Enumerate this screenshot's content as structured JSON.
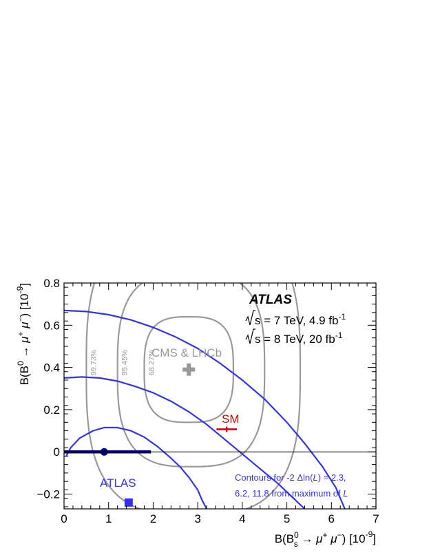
{
  "chart_data": {
    "type": "contour",
    "xlabel_prefix": "B(B",
    "xlabel_sub": "s",
    "xlabel_sup": "0",
    "xlabel_mid": " → μ",
    "xlabel_tail": " μ",
    "xlabel_unit": ") [10",
    "xlabel_exp": "-9",
    "xlabel_close": "]",
    "ylabel_prefix": "B(B",
    "ylabel_sup": "0",
    "ylabel_mid": " → μ",
    "ylabel_tail": " μ",
    "ylabel_unit": ") [10",
    "ylabel_exp": "-9",
    "ylabel_close": "]",
    "xlim": [
      0,
      7
    ],
    "ylim": [
      -0.27,
      0.8
    ],
    "xticks": [
      "0",
      "1",
      "2",
      "3",
      "4",
      "5",
      "6",
      "7"
    ],
    "yticks": [
      "−0.2",
      "0",
      "0.2",
      "0.4",
      "0.6",
      "0.8"
    ],
    "experiment": "ATLAS",
    "energy_lines": [
      {
        "text": "s = 7 TeV, 4.9 fb",
        "exp": "-1"
      },
      {
        "text": "s = 8 TeV, 20 fb",
        "exp": "-1"
      }
    ],
    "cms_lhcb": {
      "label": "CMS & LHCb",
      "center": {
        "x": 2.8,
        "y": 0.39
      },
      "contours": [
        {
          "label": "68.27%",
          "rx": 1.0,
          "ry": 0.25
        },
        {
          "label": "95.45%",
          "rx": 1.65,
          "ry": 0.46
        },
        {
          "label": "99.73%",
          "rx": 2.4,
          "ry": 0.69
        }
      ],
      "color": "#999999"
    },
    "sm": {
      "label": "SM",
      "x": 3.65,
      "y": 0.107,
      "xerr": 0.23,
      "color": "#cc0000"
    },
    "atlas": {
      "label": "ATLAS",
      "best_fit": {
        "x": 1.45,
        "y": -0.24
      },
      "boundary_point": {
        "x": 0.9,
        "y": 0.0
      },
      "boundary_range": [
        0.0,
        1.95
      ],
      "contour_levels": [
        "2.3",
        "6.2",
        "11.8"
      ],
      "contours": [
        {
          "level": "2.3",
          "x": [
            0.05,
            0.15,
            0.35,
            0.65,
            0.9,
            1.2,
            1.5,
            1.8,
            2.1,
            2.4,
            2.6,
            2.8,
            3.0,
            3.1,
            3.2
          ],
          "y": [
            -0.02,
            0.02,
            0.065,
            0.1,
            0.115,
            0.115,
            0.1,
            0.07,
            0.025,
            -0.03,
            -0.07,
            -0.12,
            -0.18,
            -0.23,
            -0.27
          ]
        },
        {
          "level": "6.2",
          "x": [
            0.0,
            0.4,
            0.8,
            1.2,
            1.6,
            2.0,
            2.4,
            2.8,
            3.2,
            3.6,
            4.0,
            4.4,
            4.8,
            5.1,
            5.3,
            5.4
          ],
          "y": [
            0.35,
            0.355,
            0.35,
            0.335,
            0.31,
            0.28,
            0.24,
            0.19,
            0.13,
            0.06,
            -0.01,
            -0.08,
            -0.15,
            -0.21,
            -0.25,
            -0.27
          ]
        },
        {
          "level": "11.8",
          "x": [
            0.0,
            0.5,
            1.0,
            1.5,
            2.0,
            2.5,
            3.0,
            3.5,
            4.0,
            4.5,
            5.0,
            5.4,
            5.8,
            6.1,
            6.3
          ],
          "y": [
            0.67,
            0.665,
            0.65,
            0.625,
            0.59,
            0.545,
            0.49,
            0.42,
            0.34,
            0.25,
            0.14,
            0.04,
            -0.07,
            -0.17,
            -0.27
          ]
        }
      ],
      "color": "#3333ee",
      "boundary_color": "#000080"
    },
    "legend_text_1": "Contours for -2 ",
    "legend_text_1b": "Δln(",
    "legend_text_1c": "L",
    "legend_text_1d": ") = 2.3,",
    "legend_text_2": "6.2, 11.8 from maximum of ",
    "legend_text_2b": "L",
    "grid": false
  }
}
